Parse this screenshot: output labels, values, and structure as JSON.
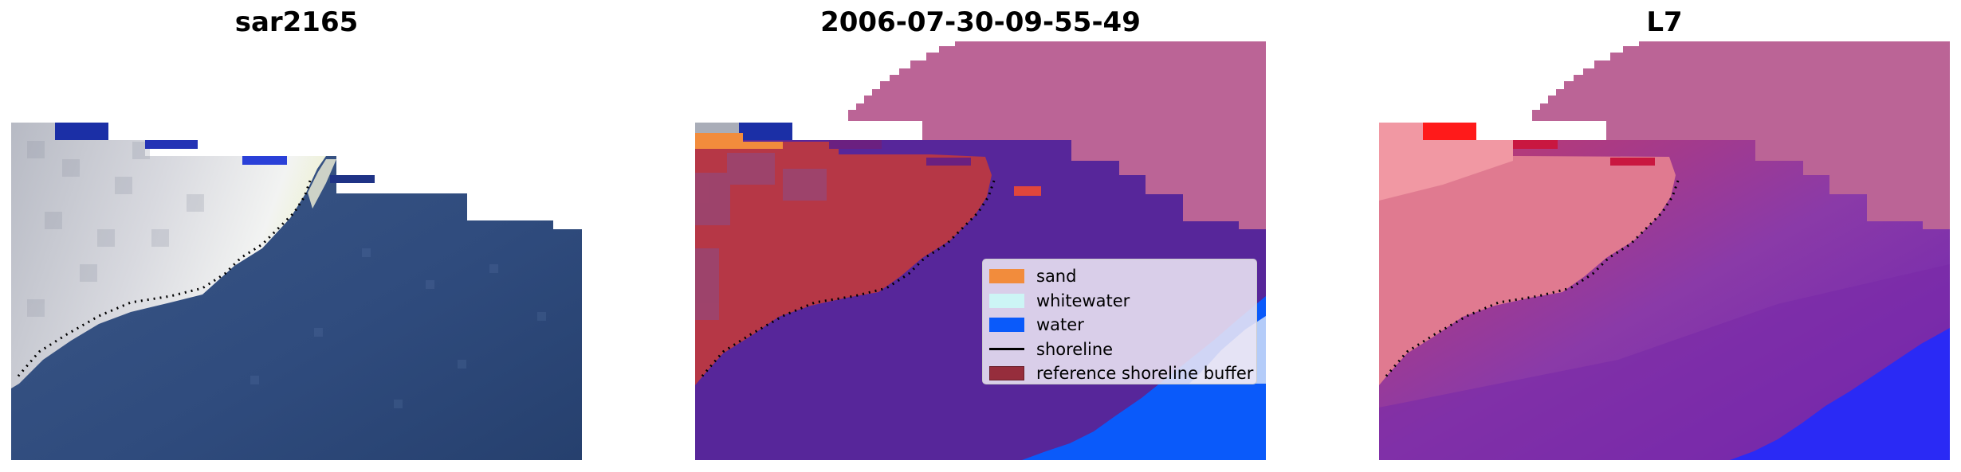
{
  "panels": [
    {
      "title": "sar2165"
    },
    {
      "title": "2006-07-30-09-55-49"
    },
    {
      "title": "L7"
    }
  ],
  "legend": {
    "items": [
      {
        "label": "sand",
        "color": "#f28c3c",
        "kind": "patch"
      },
      {
        "label": "whitewater",
        "color": "#ccf5f5",
        "kind": "patch"
      },
      {
        "label": "water",
        "color": "#0a5afa",
        "kind": "patch"
      },
      {
        "label": "shoreline",
        "color": "#000000",
        "kind": "line"
      },
      {
        "label": "reference shoreline buffer",
        "color": "#962d3c",
        "kind": "patch"
      }
    ]
  },
  "colors": {
    "ocean_rgb": "#2d4a7d",
    "surf_white": "#e6e8ee",
    "class_water": "#0a5afa",
    "class_sand": "#f28c3c",
    "buffer_red": "#b63746",
    "deep_water_purple": "#57269a",
    "no_data_pink": "#bb6496",
    "index_red": "#ff1a1a",
    "index_blue": "#2a2af5"
  }
}
